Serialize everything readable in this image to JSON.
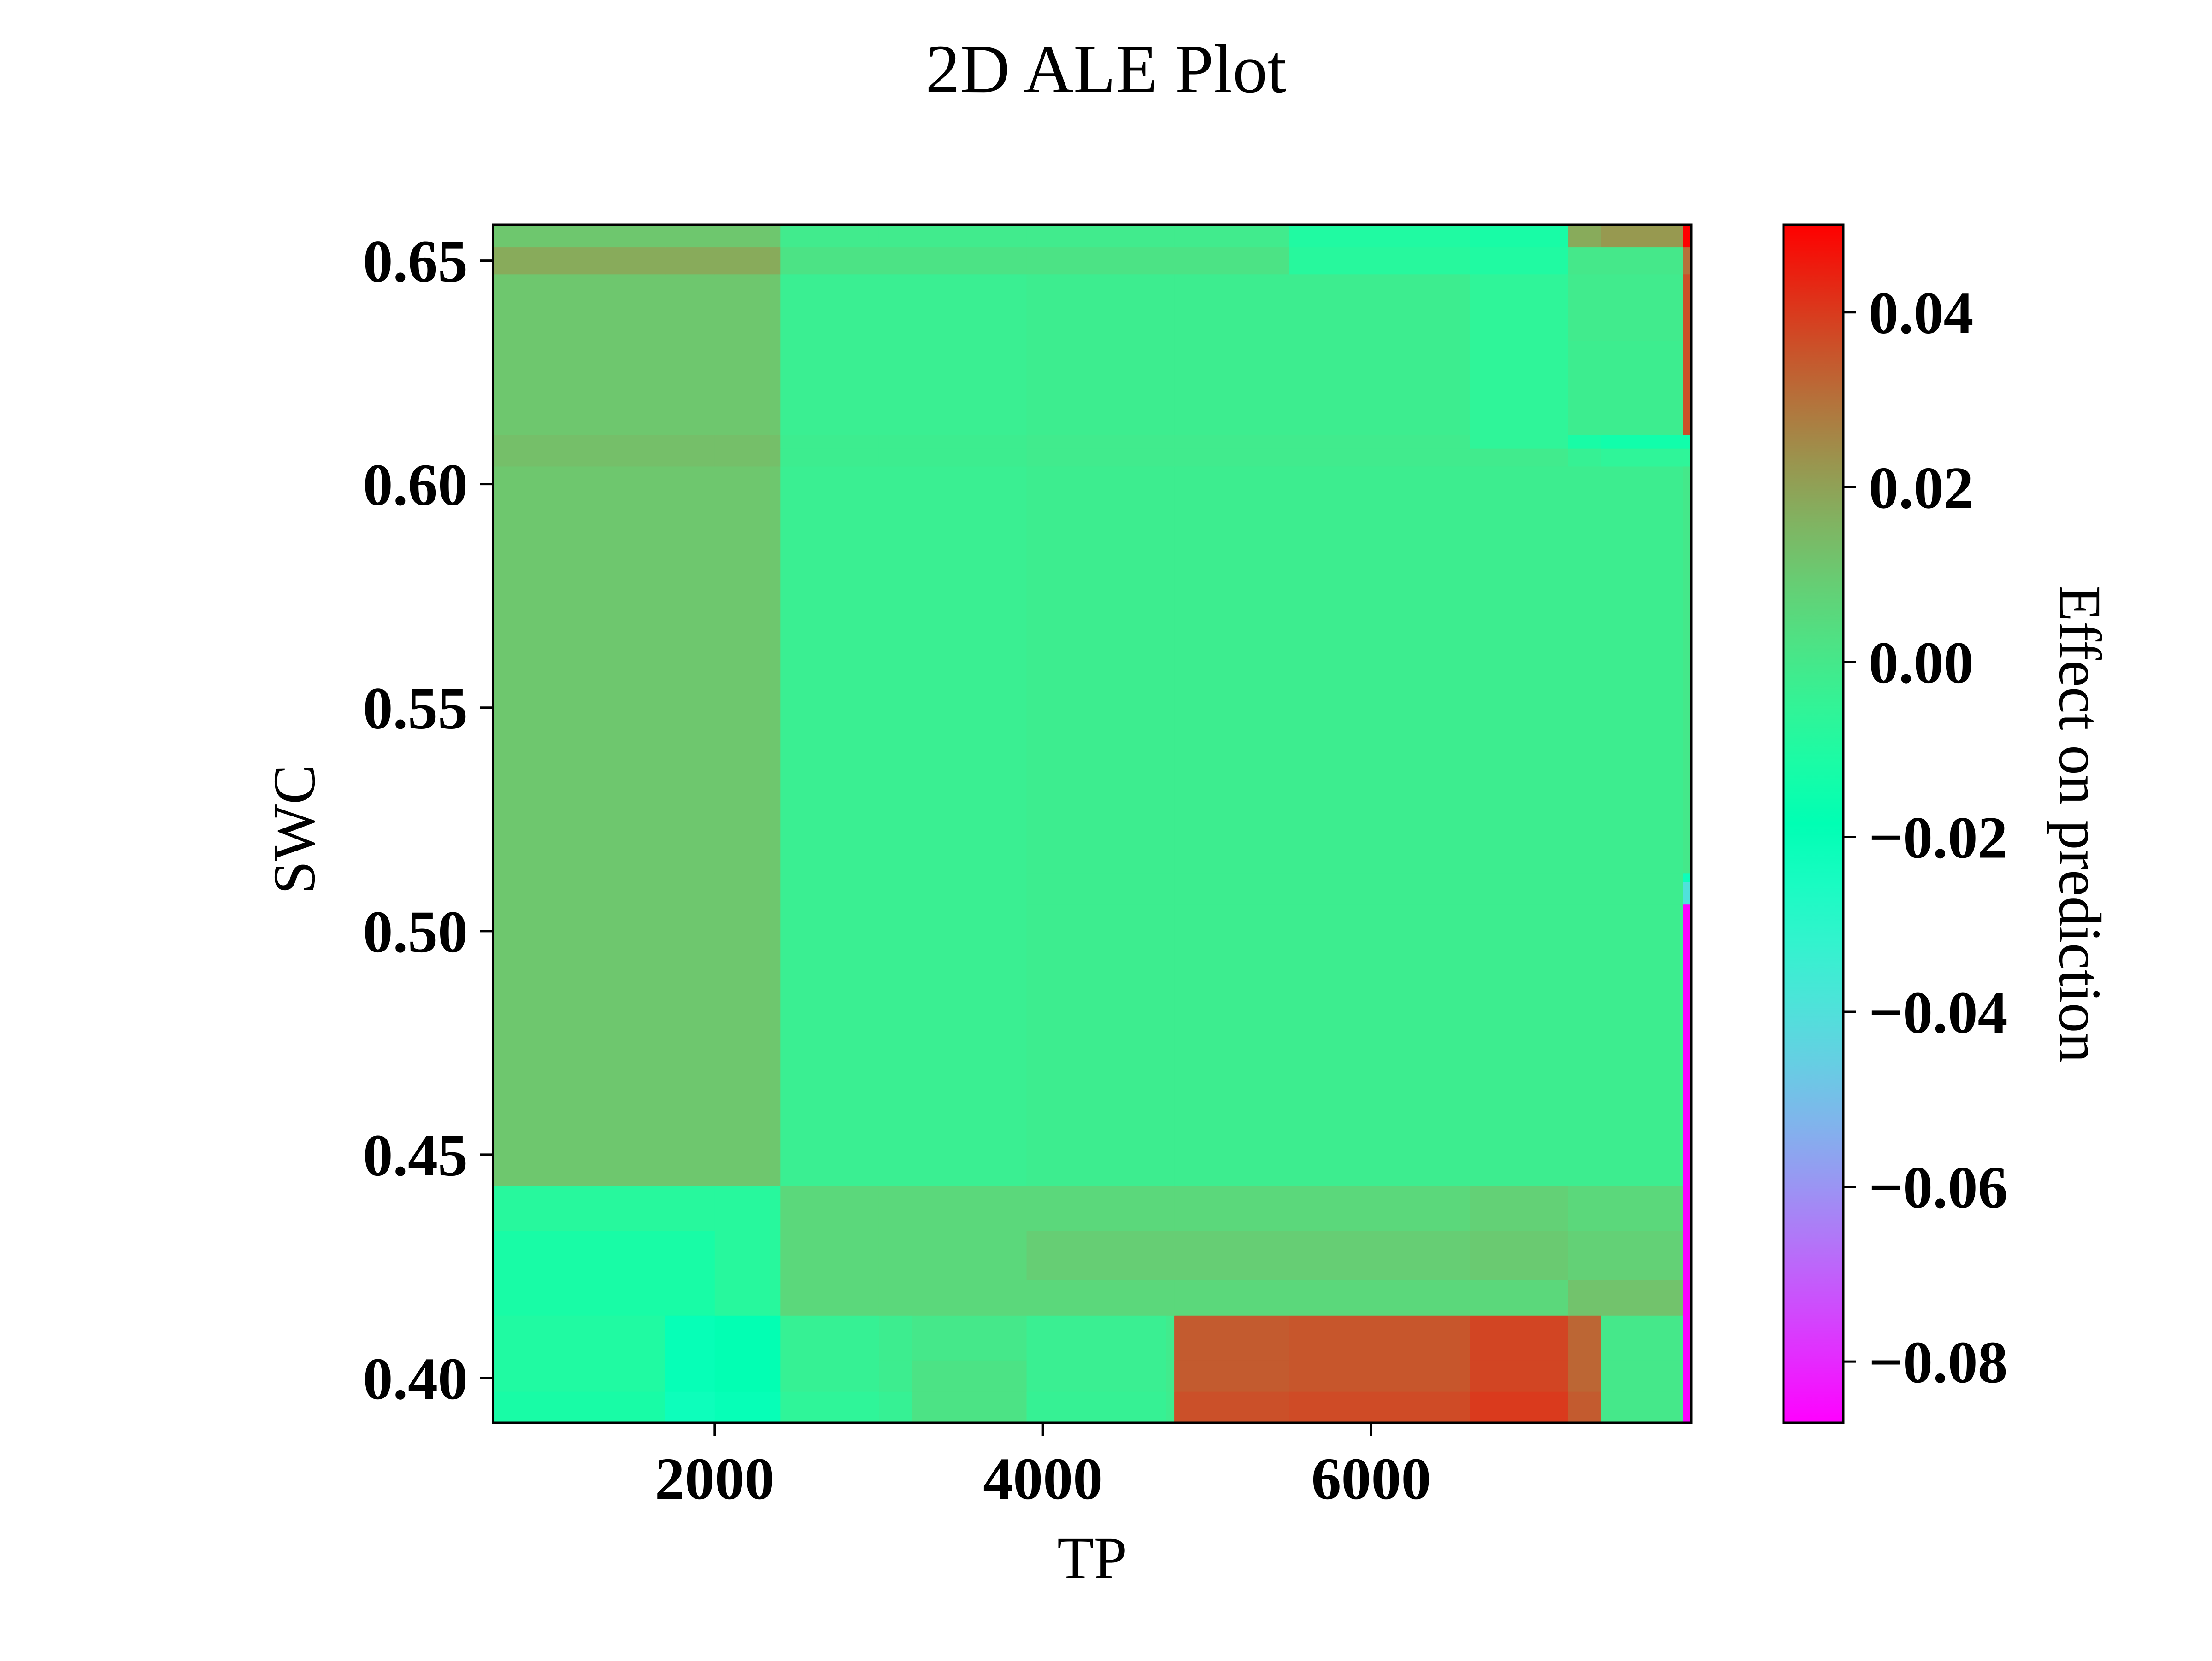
{
  "chart_data": {
    "type": "heatmap",
    "title": "2D ALE Plot",
    "xlabel": "TP",
    "ylabel": "SWC",
    "colorbar_label": "Effect on prediction",
    "colormap": "rainbow",
    "color_range": [
      -0.087,
      0.05
    ],
    "xlim": [
      650,
      7950
    ],
    "ylim": [
      0.39,
      0.658
    ],
    "x_ticks": [
      2000,
      4000,
      6000
    ],
    "x_tick_labels": [
      "2000",
      "4000",
      "6000"
    ],
    "y_ticks": [
      0.4,
      0.45,
      0.5,
      0.55,
      0.6,
      0.65
    ],
    "y_tick_labels": [
      "0.40",
      "0.45",
      "0.50",
      "0.55",
      "0.60",
      "0.65"
    ],
    "colorbar_ticks": [
      -0.08,
      -0.06,
      -0.04,
      -0.02,
      0.0,
      0.02,
      0.04
    ],
    "colorbar_tick_labels": [
      "−0.08",
      "−0.06",
      "−0.04",
      "−0.02",
      "0.00",
      "0.02",
      "0.04"
    ],
    "grid": false,
    "x_edges": [
      650,
      1700,
      2000,
      2400,
      3000,
      3200,
      3900,
      4750,
      4800,
      5500,
      6600,
      7200,
      7400,
      7900,
      7950
    ],
    "y_edges": [
      0.39,
      0.397,
      0.404,
      0.414,
      0.422,
      0.433,
      0.443,
      0.506,
      0.511,
      0.513,
      0.604,
      0.608,
      0.611,
      0.632,
      0.647,
      0.653,
      0.658
    ],
    "values": [
      [
        -0.012,
        -0.022,
        -0.02,
        -0.006,
        -0.004,
        0.002,
        -0.004,
        -0.002,
        0.036,
        0.037,
        0.04,
        0.034,
        0.0,
        -0.087
      ],
      [
        -0.01,
        -0.02,
        -0.018,
        -0.004,
        -0.002,
        0.002,
        -0.003,
        -0.001,
        0.034,
        0.035,
        0.038,
        0.032,
        0.0,
        -0.087
      ],
      [
        -0.01,
        -0.02,
        -0.018,
        -0.004,
        -0.002,
        0.0,
        -0.003,
        -0.001,
        0.034,
        0.035,
        0.038,
        0.032,
        0.0,
        -0.087
      ],
      [
        -0.012,
        -0.012,
        -0.008,
        0.006,
        0.006,
        0.006,
        0.006,
        0.006,
        0.006,
        0.006,
        0.006,
        0.012,
        0.012,
        -0.087
      ],
      [
        -0.012,
        -0.012,
        -0.008,
        0.006,
        0.006,
        0.006,
        0.009,
        0.009,
        0.009,
        0.009,
        0.01,
        0.008,
        0.008,
        -0.087
      ],
      [
        -0.008,
        -0.008,
        -0.008,
        0.006,
        0.006,
        0.006,
        0.006,
        0.006,
        0.006,
        0.006,
        0.008,
        0.006,
        0.006,
        -0.087
      ],
      [
        0.011,
        0.011,
        0.011,
        -0.003,
        -0.003,
        -0.003,
        -0.002,
        -0.002,
        -0.002,
        -0.002,
        -0.002,
        -0.002,
        -0.002,
        -0.087
      ],
      [
        0.011,
        0.011,
        0.011,
        -0.003,
        -0.003,
        -0.003,
        -0.002,
        -0.002,
        -0.002,
        -0.002,
        -0.002,
        -0.002,
        -0.002,
        -0.04
      ],
      [
        0.011,
        0.011,
        0.011,
        -0.003,
        -0.003,
        -0.003,
        -0.002,
        -0.002,
        -0.002,
        -0.002,
        -0.002,
        -0.002,
        -0.002,
        -0.022
      ],
      [
        0.011,
        0.011,
        0.011,
        -0.003,
        -0.003,
        -0.003,
        -0.002,
        -0.002,
        -0.002,
        -0.002,
        -0.002,
        -0.002,
        -0.002,
        0.0
      ],
      [
        0.013,
        0.013,
        0.013,
        -0.002,
        -0.002,
        -0.002,
        -0.001,
        -0.001,
        -0.001,
        -0.001,
        -0.001,
        -0.004,
        -0.006,
        -0.006
      ],
      [
        0.013,
        0.013,
        0.013,
        -0.002,
        -0.002,
        -0.002,
        -0.001,
        -0.001,
        -0.001,
        -0.001,
        -0.006,
        -0.012,
        -0.014,
        -0.014
      ],
      [
        0.011,
        0.011,
        0.011,
        -0.003,
        -0.003,
        -0.003,
        -0.002,
        -0.002,
        -0.002,
        -0.002,
        -0.006,
        -0.002,
        -0.002,
        0.036
      ],
      [
        0.011,
        0.011,
        0.011,
        -0.003,
        -0.003,
        -0.003,
        -0.002,
        -0.002,
        -0.002,
        -0.002,
        -0.006,
        -0.001,
        -0.001,
        0.036
      ],
      [
        0.018,
        0.018,
        0.018,
        0.002,
        0.002,
        0.002,
        0.002,
        0.002,
        0.002,
        -0.008,
        -0.01,
        0.0,
        0.0,
        0.03
      ],
      [
        0.011,
        0.011,
        0.011,
        -0.001,
        -0.001,
        -0.001,
        -0.001,
        -0.001,
        -0.001,
        -0.01,
        -0.012,
        0.018,
        0.022,
        0.05
      ]
    ]
  }
}
